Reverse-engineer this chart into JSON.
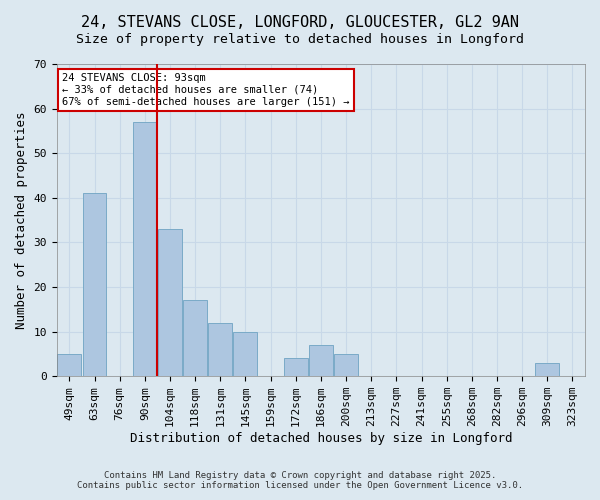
{
  "title1": "24, STEVANS CLOSE, LONGFORD, GLOUCESTER, GL2 9AN",
  "title2": "Size of property relative to detached houses in Longford",
  "xlabel": "Distribution of detached houses by size in Longford",
  "ylabel": "Number of detached properties",
  "categories": [
    "49sqm",
    "63sqm",
    "76sqm",
    "90sqm",
    "104sqm",
    "118sqm",
    "131sqm",
    "145sqm",
    "159sqm",
    "172sqm",
    "186sqm",
    "200sqm",
    "213sqm",
    "227sqm",
    "241sqm",
    "255sqm",
    "268sqm",
    "282sqm",
    "296sqm",
    "309sqm",
    "323sqm"
  ],
  "values": [
    5,
    41,
    0,
    57,
    33,
    17,
    12,
    10,
    0,
    4,
    7,
    5,
    0,
    0,
    0,
    0,
    0,
    0,
    0,
    3,
    0
  ],
  "bar_color": "#adc6e0",
  "bar_edge_color": "#7aaac8",
  "property_line_x": 3.5,
  "property_size": 93,
  "annotation_line1": "24 STEVANS CLOSE: 93sqm",
  "annotation_line2": "← 33% of detached houses are smaller (74)",
  "annotation_line3": "67% of semi-detached houses are larger (151) →",
  "annotation_box_color": "#ffffff",
  "annotation_border_color": "#cc0000",
  "ylim": [
    0,
    70
  ],
  "yticks": [
    0,
    10,
    20,
    30,
    40,
    50,
    60,
    70
  ],
  "grid_color": "#c8d8e8",
  "background_color": "#dce8f0",
  "footer1": "Contains HM Land Registry data © Crown copyright and database right 2025.",
  "footer2": "Contains public sector information licensed under the Open Government Licence v3.0.",
  "title_fontsize": 11,
  "axis_label_fontsize": 9,
  "tick_fontsize": 8,
  "red_line_color": "#cc0000"
}
